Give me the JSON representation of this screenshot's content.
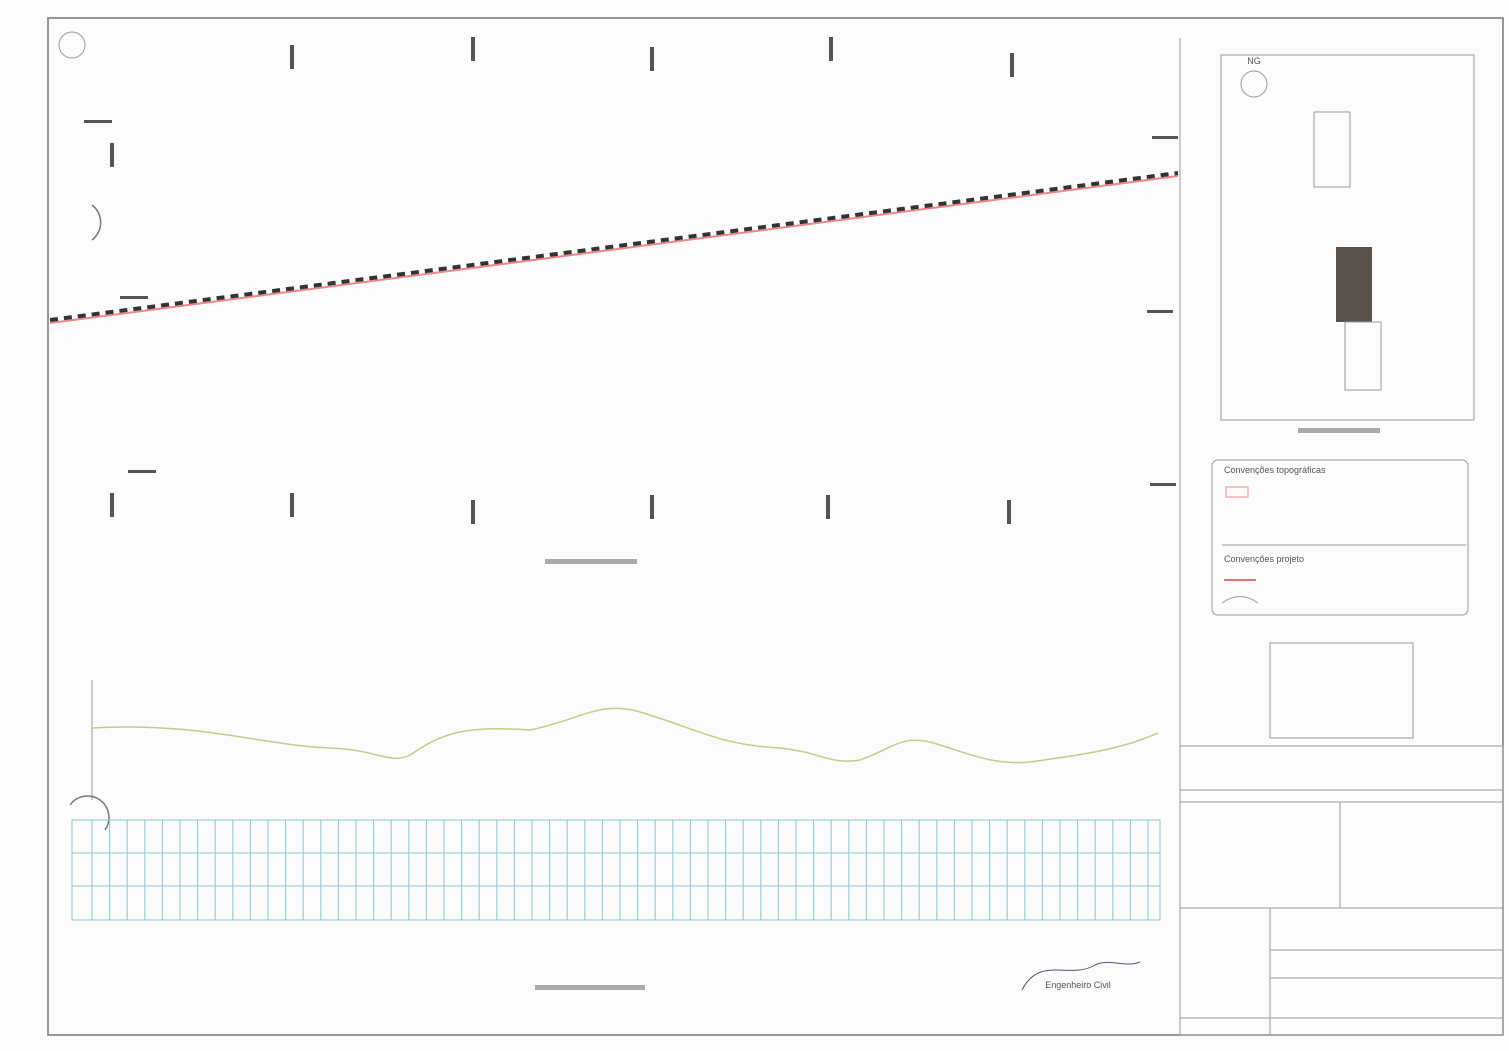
{
  "north_label": "NG",
  "legend": {
    "topographic_title": "Convenções topográficas",
    "project_title": "Convenções projeto"
  },
  "title_block": {
    "signature_role": "Engenheiro Civil"
  }
}
